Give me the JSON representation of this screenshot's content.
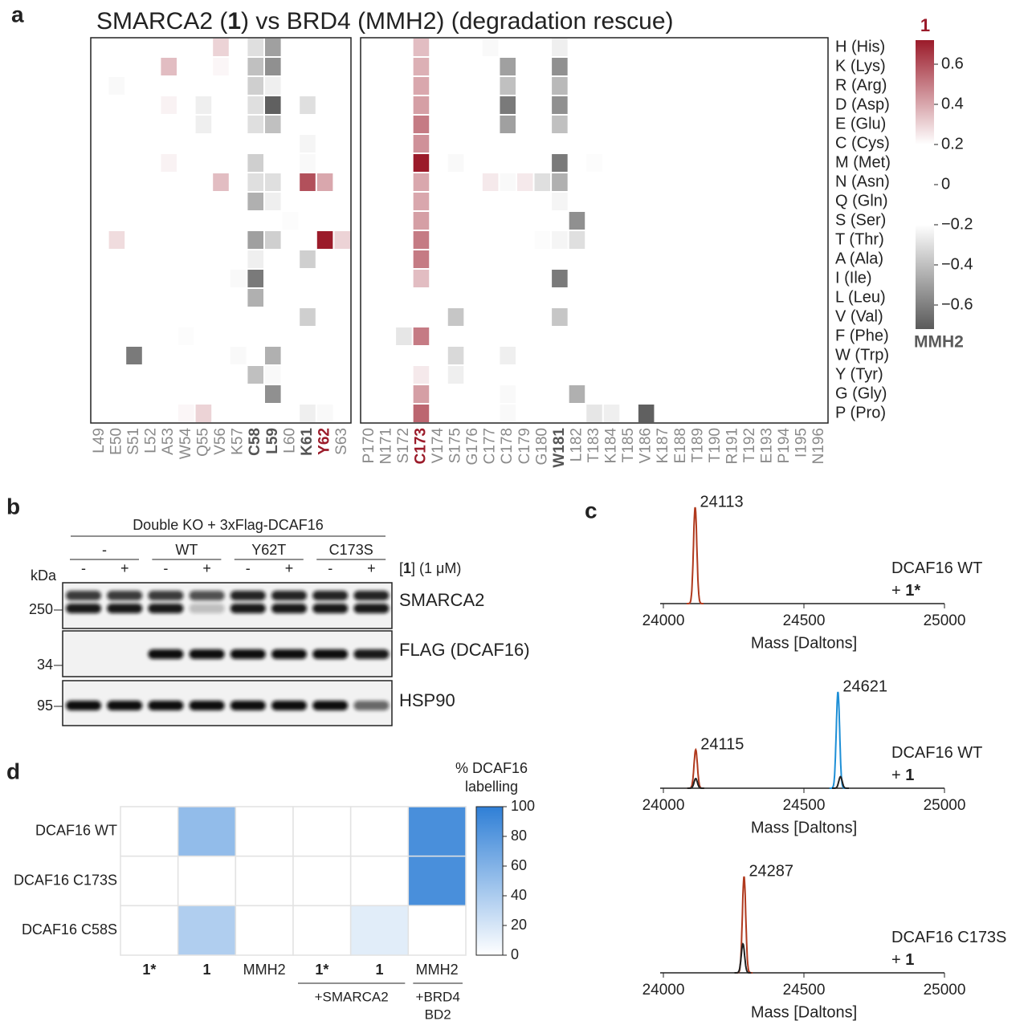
{
  "panel_labels": [
    "a",
    "b",
    "c",
    "d"
  ],
  "chart_data": [
    {
      "type": "heatmap",
      "title": [
        {
          "text": "SMARCA2 ("
        },
        {
          "text": "1",
          "bold": true
        },
        {
          "text": ") vs BRD4 (MMH2) (degradation rescue)"
        }
      ],
      "rows": [
        "H (His)",
        "K (Lys)",
        "R (Arg)",
        "D (Asp)",
        "E (Glu)",
        "C (Cys)",
        "M (Met)",
        "N (Asn)",
        "Q (Gln)",
        "S (Ser)",
        "T (Thr)",
        "A (Ala)",
        "I (Ile)",
        "L (Leu)",
        "V (Val)",
        "F (Phe)",
        "W (Trp)",
        "Y (Tyr)",
        "G (Gly)",
        "P (Pro)"
      ],
      "blocks": [
        {
          "columns": [
            {
              "label": "L49"
            },
            {
              "label": "E50"
            },
            {
              "label": "S51"
            },
            {
              "label": "L52"
            },
            {
              "label": "A53"
            },
            {
              "label": "W54"
            },
            {
              "label": "Q55"
            },
            {
              "label": "V56"
            },
            {
              "label": "K57"
            },
            {
              "label": "C58",
              "bold": true,
              "color": "#555555"
            },
            {
              "label": "L59",
              "bold": true,
              "color": "#555555"
            },
            {
              "label": "L60"
            },
            {
              "label": "K61",
              "bold": true,
              "color": "#555555"
            },
            {
              "label": "Y62",
              "bold": true,
              "color": "#9b1b2a"
            },
            {
              "label": "S63"
            }
          ]
        },
        {
          "columns": [
            {
              "label": "P170"
            },
            {
              "label": "N171"
            },
            {
              "label": "S172"
            },
            {
              "label": "C173",
              "bold": true,
              "color": "#9b1b2a"
            },
            {
              "label": "V174"
            },
            {
              "label": "S175"
            },
            {
              "label": "G176"
            },
            {
              "label": "C177"
            },
            {
              "label": "C178"
            },
            {
              "label": "C179"
            },
            {
              "label": "G180"
            },
            {
              "label": "W181",
              "bold": true,
              "color": "#555555"
            },
            {
              "label": "L182"
            },
            {
              "label": "T183"
            },
            {
              "label": "K184"
            },
            {
              "label": "T185"
            },
            {
              "label": "V186"
            },
            {
              "label": "K187"
            },
            {
              "label": "E188"
            },
            {
              "label": "T189"
            },
            {
              "label": "T190"
            },
            {
              "label": "R191"
            },
            {
              "label": "T192"
            },
            {
              "label": "E193"
            },
            {
              "label": "P194"
            },
            {
              "label": "I195"
            },
            {
              "label": "N196"
            }
          ]
        }
      ],
      "cells": [
        {
          "x": "V56",
          "y": "H (His)",
          "value": 0.3
        },
        {
          "x": "C58",
          "y": "H (His)",
          "value": -0.3
        },
        {
          "x": "L59",
          "y": "H (His)",
          "value": -0.5
        },
        {
          "x": "A53",
          "y": "K (Lys)",
          "value": 0.35
        },
        {
          "x": "V56",
          "y": "K (Lys)",
          "value": 0.22
        },
        {
          "x": "C58",
          "y": "K (Lys)",
          "value": -0.4
        },
        {
          "x": "L59",
          "y": "K (Lys)",
          "value": -0.55
        },
        {
          "x": "E50",
          "y": "R (Arg)",
          "value": -0.22
        },
        {
          "x": "C58",
          "y": "R (Arg)",
          "value": -0.35
        },
        {
          "x": "L59",
          "y": "R (Arg)",
          "value": -0.25
        },
        {
          "x": "A53",
          "y": "D (Asp)",
          "value": 0.23
        },
        {
          "x": "Q55",
          "y": "D (Asp)",
          "value": -0.25
        },
        {
          "x": "C58",
          "y": "D (Asp)",
          "value": -0.3
        },
        {
          "x": "L59",
          "y": "D (Asp)",
          "value": -0.7
        },
        {
          "x": "K61",
          "y": "D (Asp)",
          "value": -0.3
        },
        {
          "x": "Q55",
          "y": "E (Glu)",
          "value": -0.25
        },
        {
          "x": "C58",
          "y": "E (Glu)",
          "value": -0.3
        },
        {
          "x": "L59",
          "y": "E (Glu)",
          "value": -0.4
        },
        {
          "x": "K61",
          "y": "C (Cys)",
          "value": -0.23
        },
        {
          "x": "A53",
          "y": "M (Met)",
          "value": 0.23
        },
        {
          "x": "C58",
          "y": "M (Met)",
          "value": -0.35
        },
        {
          "x": "K61",
          "y": "M (Met)",
          "value": -0.22
        },
        {
          "x": "V56",
          "y": "N (Asn)",
          "value": 0.35
        },
        {
          "x": "C58",
          "y": "N (Asn)",
          "value": -0.3
        },
        {
          "x": "L59",
          "y": "N (Asn)",
          "value": -0.3
        },
        {
          "x": "K61",
          "y": "N (Asn)",
          "value": 0.6
        },
        {
          "x": "Y62",
          "y": "N (Asn)",
          "value": 0.4
        },
        {
          "x": "C58",
          "y": "Q (Gln)",
          "value": -0.45
        },
        {
          "x": "L59",
          "y": "Q (Gln)",
          "value": -0.25
        },
        {
          "x": "L60",
          "y": "S (Ser)",
          "value": -0.21
        },
        {
          "x": "E50",
          "y": "T (Thr)",
          "value": 0.28
        },
        {
          "x": "C58",
          "y": "T (Thr)",
          "value": -0.5
        },
        {
          "x": "L59",
          "y": "T (Thr)",
          "value": -0.35
        },
        {
          "x": "Y62",
          "y": "T (Thr)",
          "value": 0.75
        },
        {
          "x": "S63",
          "y": "T (Thr)",
          "value": 0.3
        },
        {
          "x": "C58",
          "y": "A (Ala)",
          "value": -0.25
        },
        {
          "x": "K61",
          "y": "A (Ala)",
          "value": -0.35
        },
        {
          "x": "K57",
          "y": "I (Ile)",
          "value": -0.22
        },
        {
          "x": "C58",
          "y": "I (Ile)",
          "value": -0.62
        },
        {
          "x": "C58",
          "y": "L (Leu)",
          "value": -0.45
        },
        {
          "x": "K61",
          "y": "V (Val)",
          "value": -0.35
        },
        {
          "x": "W54",
          "y": "F (Phe)",
          "value": -0.21
        },
        {
          "x": "S51",
          "y": "W (Trp)",
          "value": -0.62
        },
        {
          "x": "K57",
          "y": "W (Trp)",
          "value": -0.22
        },
        {
          "x": "L59",
          "y": "W (Trp)",
          "value": -0.45
        },
        {
          "x": "C58",
          "y": "Y (Tyr)",
          "value": -0.4
        },
        {
          "x": "L59",
          "y": "Y (Tyr)",
          "value": -0.22
        },
        {
          "x": "L59",
          "y": "G (Gly)",
          "value": -0.55
        },
        {
          "x": "W54",
          "y": "P (Pro)",
          "value": 0.22
        },
        {
          "x": "Q55",
          "y": "P (Pro)",
          "value": 0.3
        },
        {
          "x": "K61",
          "y": "P (Pro)",
          "value": -0.25
        },
        {
          "x": "Y62",
          "y": "P (Pro)",
          "value": -0.22
        },
        {
          "x": "C173",
          "y": "H (His)",
          "value": 0.35
        },
        {
          "x": "C173",
          "y": "K (Lys)",
          "value": 0.38
        },
        {
          "x": "C173",
          "y": "R (Arg)",
          "value": 0.4
        },
        {
          "x": "C173",
          "y": "D (Asp)",
          "value": 0.42
        },
        {
          "x": "C173",
          "y": "E (Glu)",
          "value": 0.5
        },
        {
          "x": "C173",
          "y": "C (Cys)",
          "value": 0.45
        },
        {
          "x": "C173",
          "y": "M (Met)",
          "value": 0.78
        },
        {
          "x": "C173",
          "y": "N (Asn)",
          "value": 0.4
        },
        {
          "x": "C173",
          "y": "Q (Gln)",
          "value": 0.4
        },
        {
          "x": "C173",
          "y": "S (Ser)",
          "value": 0.42
        },
        {
          "x": "C173",
          "y": "T (Thr)",
          "value": 0.5
        },
        {
          "x": "C173",
          "y": "A (Ala)",
          "value": 0.5
        },
        {
          "x": "C173",
          "y": "I (Ile)",
          "value": 0.35
        },
        {
          "x": "C173",
          "y": "F (Phe)",
          "value": 0.5
        },
        {
          "x": "C173",
          "y": "Y (Tyr)",
          "value": 0.25
        },
        {
          "x": "C173",
          "y": "G (Gly)",
          "value": 0.42
        },
        {
          "x": "C173",
          "y": "P (Pro)",
          "value": 0.55
        },
        {
          "x": "C177",
          "y": "H (His)",
          "value": -0.22
        },
        {
          "x": "W181",
          "y": "H (His)",
          "value": -0.25
        },
        {
          "x": "C178",
          "y": "K (Lys)",
          "value": -0.5
        },
        {
          "x": "W181",
          "y": "K (Lys)",
          "value": -0.55
        },
        {
          "x": "C178",
          "y": "R (Arg)",
          "value": -0.4
        },
        {
          "x": "W181",
          "y": "R (Arg)",
          "value": -0.42
        },
        {
          "x": "C178",
          "y": "D (Asp)",
          "value": -0.62
        },
        {
          "x": "W181",
          "y": "D (Asp)",
          "value": -0.55
        },
        {
          "x": "C178",
          "y": "E (Glu)",
          "value": -0.5
        },
        {
          "x": "W181",
          "y": "E (Glu)",
          "value": -0.4
        },
        {
          "x": "S175",
          "y": "M (Met)",
          "value": -0.22
        },
        {
          "x": "W181",
          "y": "M (Met)",
          "value": -0.62
        },
        {
          "x": "T183",
          "y": "M (Met)",
          "value": -0.21
        },
        {
          "x": "C177",
          "y": "N (Asn)",
          "value": 0.25
        },
        {
          "x": "C178",
          "y": "N (Asn)",
          "value": -0.22
        },
        {
          "x": "C179",
          "y": "N (Asn)",
          "value": 0.25
        },
        {
          "x": "G180",
          "y": "N (Asn)",
          "value": -0.3
        },
        {
          "x": "W181",
          "y": "N (Asn)",
          "value": -0.45
        },
        {
          "x": "W181",
          "y": "Q (Gln)",
          "value": -0.23
        },
        {
          "x": "L182",
          "y": "S (Ser)",
          "value": -0.55
        },
        {
          "x": "G180",
          "y": "T (Thr)",
          "value": -0.21
        },
        {
          "x": "W181",
          "y": "T (Thr)",
          "value": -0.23
        },
        {
          "x": "L182",
          "y": "T (Thr)",
          "value": -0.3
        },
        {
          "x": "W181",
          "y": "I (Ile)",
          "value": -0.62
        },
        {
          "x": "S175",
          "y": "V (Val)",
          "value": -0.38
        },
        {
          "x": "W181",
          "y": "V (Val)",
          "value": -0.38
        },
        {
          "x": "S172",
          "y": "F (Phe)",
          "value": -0.28
        },
        {
          "x": "S175",
          "y": "W (Trp)",
          "value": -0.32
        },
        {
          "x": "C178",
          "y": "W (Trp)",
          "value": -0.25
        },
        {
          "x": "S175",
          "y": "Y (Tyr)",
          "value": -0.25
        },
        {
          "x": "C178",
          "y": "G (Gly)",
          "value": -0.22
        },
        {
          "x": "L182",
          "y": "G (Gly)",
          "value": -0.45
        },
        {
          "x": "C178",
          "y": "P (Pro)",
          "value": -0.22
        },
        {
          "x": "T183",
          "y": "P (Pro)",
          "value": -0.28
        },
        {
          "x": "K184",
          "y": "P (Pro)",
          "value": -0.25
        },
        {
          "x": "V186",
          "y": "P (Pro)",
          "value": -0.7
        }
      ],
      "clim": [
        -0.72,
        0.72
      ],
      "white_below": 0.2,
      "cticks": [
        0.6,
        0.4,
        0.2,
        0,
        {
          "value": -0.2,
          "label": "−0.2"
        },
        {
          "value": -0.4,
          "label": "−0.4"
        },
        {
          "value": -0.6,
          "label": "−0.6"
        }
      ],
      "colorbar_top_label": "1",
      "colorbar_bottom_label": "MMH2",
      "colors": {
        "positive": "#9b1b2a",
        "negative": "#5a5a5a"
      }
    },
    {
      "type": "spectrum",
      "xlim": [
        24000,
        25000
      ],
      "xticks": [
        24000,
        24500,
        25000
      ],
      "xlabel": "Mass [Daltons]",
      "legend_lines": [
        [
          {
            "text": "DCAF16 WT"
          }
        ],
        [
          {
            "text": "+ "
          },
          {
            "text": "1*",
            "bold": true
          }
        ]
      ],
      "peaks": [
        {
          "x": 24113,
          "height": 1,
          "color": "#b03a1e",
          "labeled": true
        }
      ]
    },
    {
      "type": "spectrum",
      "xlim": [
        24000,
        25000
      ],
      "xticks": [
        24000,
        24500,
        25000
      ],
      "xlabel": "Mass [Daltons]",
      "legend_lines": [
        [
          {
            "text": "DCAF16 WT"
          }
        ],
        [
          {
            "text": "+ "
          },
          {
            "text": "1",
            "bold": true
          }
        ]
      ],
      "peaks": [
        {
          "x": 24115,
          "height": 0.4,
          "color": "#b03a1e",
          "labeled": true
        },
        {
          "x": 24115,
          "height": 0.1,
          "color": "#222222"
        },
        {
          "x": 24621,
          "height": 1,
          "color": "#1e8fd6",
          "labeled": true
        },
        {
          "x": 24630,
          "height": 0.12,
          "color": "#222222"
        }
      ]
    },
    {
      "type": "spectrum",
      "xlim": [
        24000,
        25000
      ],
      "xticks": [
        24000,
        24500,
        25000
      ],
      "xlabel": "Mass [Daltons]",
      "legend_lines": [
        [
          {
            "text": "DCAF16 C173S"
          }
        ],
        [
          {
            "text": "+ "
          },
          {
            "text": "1",
            "bold": true
          }
        ]
      ],
      "peaks": [
        {
          "x": 24287,
          "height": 1,
          "color": "#b03a1e",
          "labeled": true
        },
        {
          "x": 24283,
          "height": 0.3,
          "color": "#222222"
        }
      ]
    },
    {
      "type": "heatmap",
      "rows": [
        "DCAF16 WT",
        "DCAF16 C173S",
        "DCAF16 C58S"
      ],
      "columns": [
        {
          "label": "1*",
          "bold": true
        },
        {
          "label": "1",
          "bold": true
        },
        {
          "label": "MMH2"
        },
        {
          "label": "1*",
          "bold": true
        },
        {
          "label": "1",
          "bold": true
        },
        {
          "label": "MMH2"
        }
      ],
      "column_groups": [
        {
          "label": [
            "+SMARCA2"
          ],
          "span": [
            3,
            4
          ]
        },
        {
          "label": [
            "+BRD4",
            "BD2"
          ],
          "span": [
            5,
            5
          ]
        }
      ],
      "values": [
        [
          0,
          55,
          0,
          0,
          0,
          92
        ],
        [
          0,
          0,
          0,
          0,
          0,
          92
        ],
        [
          0,
          40,
          0,
          0,
          15,
          0
        ]
      ],
      "colorbar_title": [
        "% DCAF16",
        "labelling"
      ],
      "clim": [
        0,
        100
      ],
      "cticks": [
        0,
        20,
        40,
        60,
        80,
        100
      ],
      "color": "#2f7fd6"
    }
  ],
  "blot": {
    "header": "Double KO + 3xFlag-DCAF16",
    "groups": [
      "-",
      "WT",
      "Y62T",
      "C173S"
    ],
    "treatments": [
      "-",
      "+",
      "-",
      "+",
      "-",
      "+",
      "-",
      "+"
    ],
    "treatment_label": [
      {
        "text": "["
      },
      {
        "text": "1",
        "bold": true
      },
      {
        "text": "] (1 μM)"
      }
    ],
    "kda_label": "kDa",
    "markers": [
      250,
      34,
      95
    ],
    "blots": [
      "SMARCA2",
      "FLAG (DCAF16)",
      "HSP90"
    ]
  }
}
